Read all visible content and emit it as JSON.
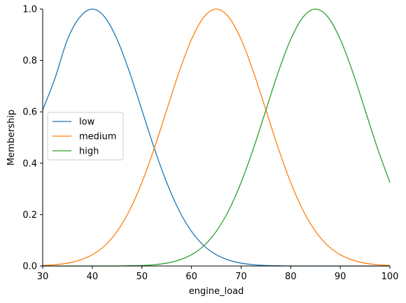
{
  "chart_data": {
    "type": "line",
    "xlabel": "engine_load",
    "ylabel": "Membership",
    "xlim": [
      30,
      100
    ],
    "ylim": [
      0,
      1.0
    ],
    "xticks": [
      "30",
      "40",
      "50",
      "60",
      "70",
      "80",
      "90",
      "100"
    ],
    "yticks": [
      "0.0",
      "0.2",
      "0.4",
      "0.6",
      "0.8",
      "1.0"
    ],
    "grid": false,
    "legend_position": "center-left",
    "x": [
      30,
      32.5,
      35,
      37.5,
      40,
      42.5,
      45,
      47.5,
      50,
      52.5,
      55,
      57.5,
      60,
      62.5,
      65,
      67.5,
      70,
      72.5,
      75,
      77.5,
      80,
      82.5,
      85,
      87.5,
      90,
      92.5,
      95,
      97.5,
      100
    ],
    "series": [
      {
        "name": "low",
        "color": "#1f77b4",
        "values": [
          0.607,
          0.732,
          0.882,
          0.969,
          1.0,
          0.969,
          0.882,
          0.755,
          0.607,
          0.458,
          0.325,
          0.216,
          0.135,
          0.079,
          0.044,
          0.023,
          0.011,
          0.005,
          0.002,
          0.001,
          0.0,
          0.0,
          0.0,
          0.0,
          0.0,
          0.0,
          0.0,
          0.0,
          0.0
        ]
      },
      {
        "name": "medium",
        "color": "#ff7f0e",
        "values": [
          0.002,
          0.005,
          0.011,
          0.023,
          0.044,
          0.079,
          0.135,
          0.216,
          0.325,
          0.458,
          0.607,
          0.755,
          0.882,
          0.969,
          1.0,
          0.969,
          0.882,
          0.755,
          0.607,
          0.458,
          0.325,
          0.216,
          0.135,
          0.079,
          0.044,
          0.023,
          0.011,
          0.005,
          0.002
        ]
      },
      {
        "name": "high",
        "color": "#2ca02c",
        "values": [
          0.0,
          0.0,
          0.0,
          0.0,
          0.0,
          0.0,
          0.0,
          0.001,
          0.002,
          0.005,
          0.011,
          0.023,
          0.044,
          0.079,
          0.135,
          0.216,
          0.325,
          0.458,
          0.607,
          0.755,
          0.882,
          0.969,
          1.0,
          0.969,
          0.882,
          0.755,
          0.607,
          0.458,
          0.325
        ]
      }
    ]
  }
}
